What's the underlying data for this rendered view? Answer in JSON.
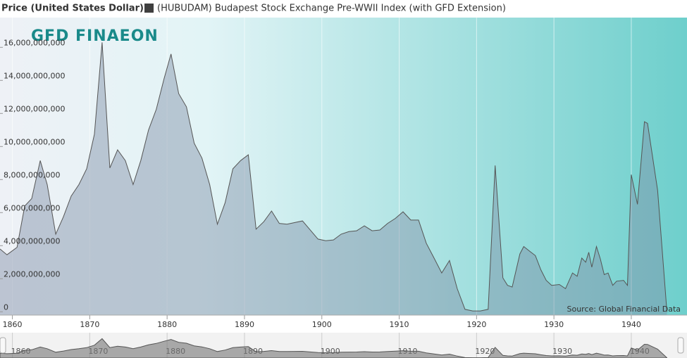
{
  "chart_data": {
    "type": "area",
    "y_axis_label": "Price (United States Dollar)",
    "logo": "GFD FINAEON",
    "source": "Source: Global Financial Data",
    "series": [
      {
        "name": "(HUBUDAM) Budapest Stock Exchange Pre-WWII Index (with GFD Extension)",
        "color": "#3f3f3f",
        "x": [
          1858.4,
          1859.3,
          1860.6,
          1861.6,
          1862.5,
          1863.6,
          1864.5,
          1865.6,
          1866.6,
          1867.6,
          1868.6,
          1869.6,
          1870.6,
          1871.6,
          1872.6,
          1873.6,
          1874.6,
          1875.6,
          1876.6,
          1877.6,
          1878.6,
          1879.6,
          1880.5,
          1881.5,
          1882.5,
          1883.5,
          1884.5,
          1885.5,
          1886.5,
          1887.5,
          1888.5,
          1889.5,
          1890.5,
          1891.5,
          1892.5,
          1893.5,
          1894.5,
          1895.5,
          1897.5,
          1899.5,
          1900.5,
          1901.5,
          1902.5,
          1903.5,
          1904.5,
          1905.5,
          1906.5,
          1907.5,
          1908.5,
          1909.5,
          1910.5,
          1911.5,
          1912.5,
          1913.5,
          1914.5,
          1915.5,
          1916.5,
          1917.5,
          1918.5,
          1919.5,
          1920.5,
          1921.5,
          1922.4,
          1923.4,
          1924.0,
          1924.6,
          1925.6,
          1926.1,
          1926.9,
          1927.6,
          1928.3,
          1929.0,
          1929.7,
          1930.7,
          1931.5,
          1932.4,
          1933.0,
          1933.6,
          1934.1,
          1934.5,
          1934.9,
          1935.5,
          1936.0,
          1936.5,
          1937.0,
          1937.6,
          1938.1,
          1939.0,
          1939.5,
          1940.0,
          1940.8,
          1941.7,
          1942.1,
          1943.4,
          1944.6
        ],
        "values": [
          3800000000,
          3450000000,
          3900000000,
          6400000000,
          6850000000,
          9150000000,
          7700000000,
          4700000000,
          5750000000,
          7000000000,
          7700000000,
          8650000000,
          10750000000,
          16300000000,
          8700000000,
          9800000000,
          9150000000,
          7700000000,
          9150000000,
          11000000000,
          12250000000,
          14100000000,
          15600000000,
          13200000000,
          12400000000,
          10200000000,
          9300000000,
          7700000000,
          5300000000,
          6600000000,
          8650000000,
          9150000000,
          9500000000,
          5000000000,
          5450000000,
          6100000000,
          5350000000,
          5300000000,
          5500000000,
          4400000000,
          4300000000,
          4350000000,
          4700000000,
          4850000000,
          4900000000,
          5200000000,
          4900000000,
          4950000000,
          5350000000,
          5650000000,
          6050000000,
          5550000000,
          5550000000,
          4150000000,
          3250000000,
          2350000000,
          3100000000,
          1400000000,
          150000000,
          50000000,
          50000000,
          150000000,
          8850000000,
          2050000000,
          1600000000,
          1500000000,
          3500000000,
          3950000000,
          3650000000,
          3400000000,
          2550000000,
          1900000000,
          1600000000,
          1650000000,
          1400000000,
          2350000000,
          2150000000,
          3250000000,
          3000000000,
          3600000000,
          2700000000,
          3950000000,
          3200000000,
          2250000000,
          2350000000,
          1600000000,
          1850000000,
          1900000000,
          1600000000,
          8300000000,
          6500000000,
          11500000000,
          11400000000,
          7350000000,
          0
        ]
      }
    ],
    "xlim": [
      1858.4,
      1947.2
    ],
    "xticks": [
      1860,
      1870,
      1880,
      1890,
      1900,
      1910,
      1920,
      1930,
      1940
    ],
    "ylim": [
      -200000000,
      17800000000
    ],
    "yticks": [
      0,
      {
        "value": 2000000000,
        "label": "2,000,000,000"
      },
      {
        "value": 4000000000,
        "label": "4,000,000,000"
      },
      {
        "value": 6000000000,
        "label": "6,000,000,000"
      },
      {
        "value": 8000000000,
        "label": "8,000,000,000"
      },
      {
        "value": 10000000000,
        "label": "10,000,000,000"
      },
      {
        "value": 12000000000,
        "label": "12,000,000,000"
      },
      {
        "value": 14000000000,
        "label": "14,000,000,000"
      },
      {
        "value": 16000000000,
        "label": "16,000,000,000"
      }
    ],
    "grid": true
  }
}
